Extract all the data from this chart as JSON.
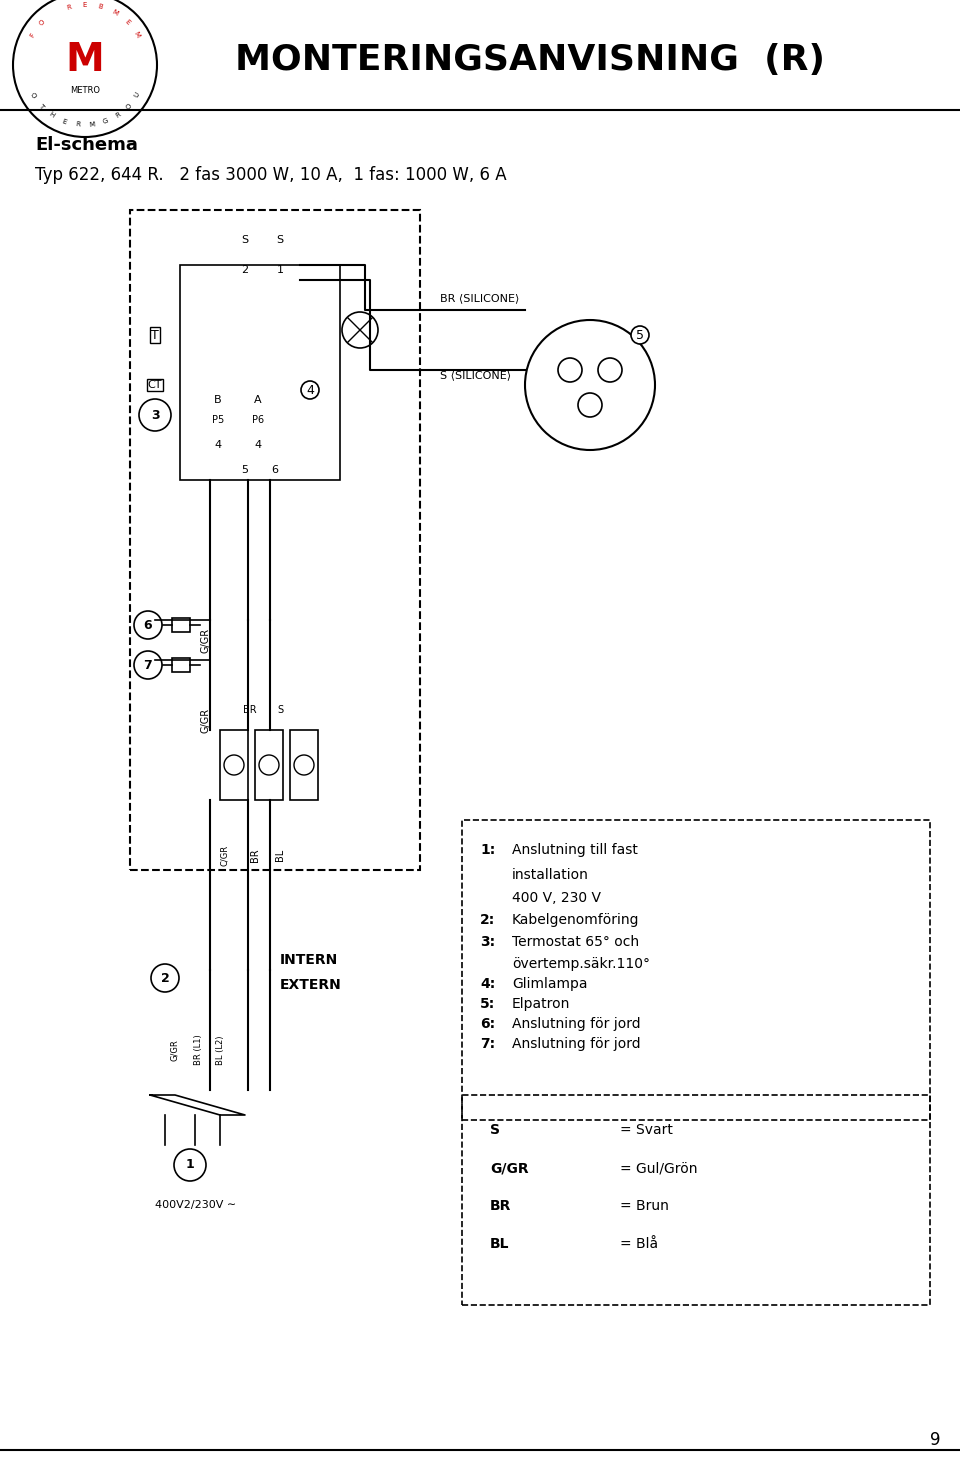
{
  "title": "MONTERINGSANVISNING  (R)",
  "subtitle_line1": "El-schema",
  "subtitle_line2": "Typ 622, 644 R.   2 fas 3000 W, 10 A,  1 fas: 1000 W, 6 A",
  "bg_color": "#ffffff",
  "header_bg": "#ffffff",
  "border_color": "#000000",
  "legend_items": [
    [
      "1:",
      "Anslutning till fast",
      "installation",
      "400 V, 230 V"
    ],
    [
      "2:",
      "Kabelgenomföring"
    ],
    [
      "3:",
      "Termostat 65° och",
      "övertemp.säkr.110°"
    ],
    [
      "4:",
      "Glimlampa"
    ],
    [
      "5:",
      "Elpatron"
    ],
    [
      "6:",
      "Anslutning för jord"
    ],
    [
      "7:",
      "Anslutning för jord"
    ]
  ],
  "color_legend": [
    [
      "S",
      "= Svart"
    ],
    [
      "G/GR",
      "= Gul/Grön"
    ],
    [
      "BR",
      "= Brun"
    ],
    [
      "BL",
      "= Blå"
    ]
  ],
  "page_number": "9"
}
